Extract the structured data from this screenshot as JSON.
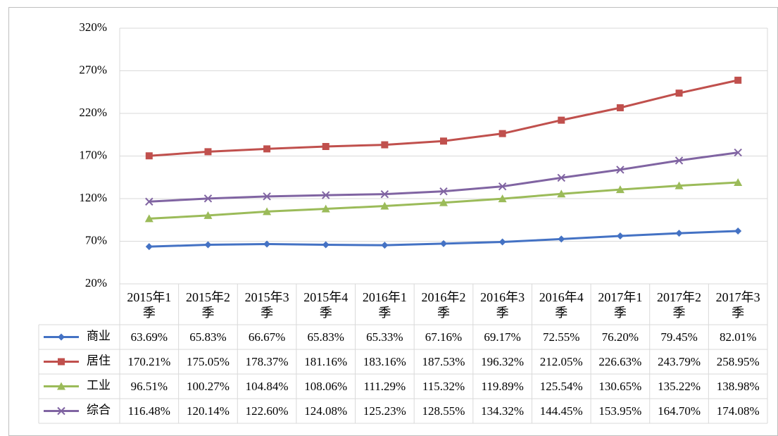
{
  "chart_data": {
    "type": "line",
    "categories": [
      "2015年1季",
      "2015年2季",
      "2015年3季",
      "2015年4季",
      "2016年1季",
      "2016年2季",
      "2016年3季",
      "2016年4季",
      "2017年1季",
      "2017年2季",
      "2017年3季"
    ],
    "series": [
      {
        "name": "商业",
        "color": "#4472c4",
        "marker": "diamond",
        "values": [
          63.69,
          65.83,
          66.67,
          65.83,
          65.33,
          67.16,
          69.17,
          72.55,
          76.2,
          79.45,
          82.01
        ],
        "value_labels": [
          "63.69%",
          "65.83%",
          "66.67%",
          "65.83%",
          "65.33%",
          "67.16%",
          "69.17%",
          "72.55%",
          "76.20%",
          "79.45%",
          "82.01%"
        ]
      },
      {
        "name": "居住",
        "color": "#c0504d",
        "marker": "square",
        "values": [
          170.21,
          175.05,
          178.37,
          181.16,
          183.16,
          187.53,
          196.32,
          212.05,
          226.63,
          243.79,
          258.95
        ],
        "value_labels": [
          "170.21%",
          "175.05%",
          "178.37%",
          "181.16%",
          "183.16%",
          "187.53%",
          "196.32%",
          "212.05%",
          "226.63%",
          "243.79%",
          "258.95%"
        ]
      },
      {
        "name": "工业",
        "color": "#9bbb59",
        "marker": "triangle",
        "values": [
          96.51,
          100.27,
          104.84,
          108.06,
          111.29,
          115.32,
          119.89,
          125.54,
          130.65,
          135.22,
          138.98
        ],
        "value_labels": [
          "96.51%",
          "100.27%",
          "104.84%",
          "108.06%",
          "111.29%",
          "115.32%",
          "119.89%",
          "125.54%",
          "130.65%",
          "135.22%",
          "138.98%"
        ]
      },
      {
        "name": "综合",
        "color": "#8064a2",
        "marker": "x",
        "values": [
          116.48,
          120.14,
          122.6,
          124.08,
          125.23,
          128.55,
          134.32,
          144.45,
          153.95,
          164.7,
          174.08
        ],
        "value_labels": [
          "116.48%",
          "120.14%",
          "122.60%",
          "124.08%",
          "125.23%",
          "128.55%",
          "134.32%",
          "144.45%",
          "153.95%",
          "164.70%",
          "174.08%"
        ]
      }
    ],
    "ylim": [
      20,
      320
    ],
    "yticks": [
      {
        "value": 20,
        "label": "20%"
      },
      {
        "value": 70,
        "label": "70%"
      },
      {
        "value": 120,
        "label": "120%"
      },
      {
        "value": 170,
        "label": "170%"
      },
      {
        "value": 220,
        "label": "220%"
      },
      {
        "value": 270,
        "label": "270%"
      },
      {
        "value": 320,
        "label": "320%"
      }
    ],
    "grid": true
  }
}
